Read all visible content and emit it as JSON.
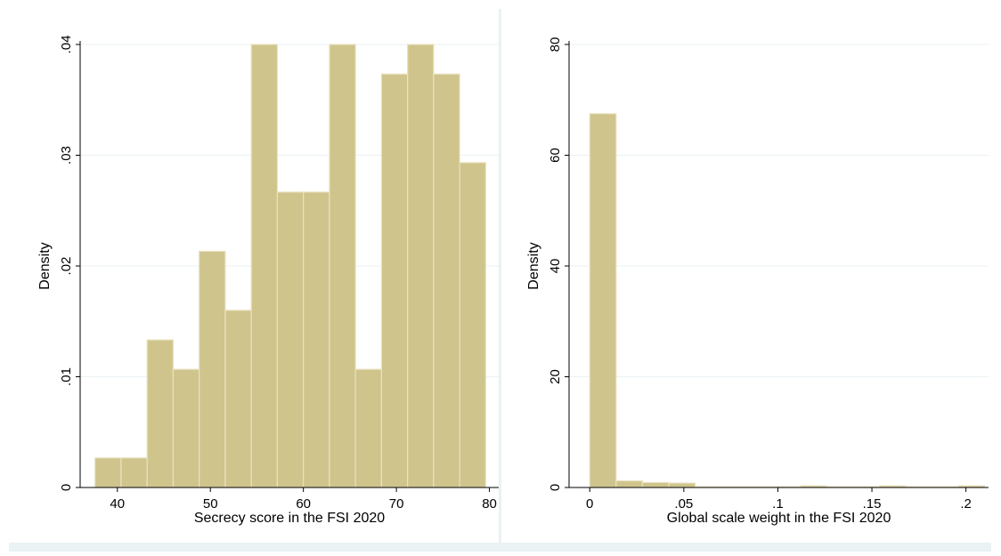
{
  "colors": {
    "bar_fill": "#cfc48c",
    "bar_stroke": "#e9e2c0",
    "grid": "#eaf2f3",
    "plot_bg": "#ffffff",
    "outer_bg": "#eaf2f3"
  },
  "chart_data": [
    {
      "type": "bar",
      "subtype": "histogram",
      "xlabel": "Secrecy score in the FSI 2020",
      "ylabel": "Density",
      "xlim": [
        36,
        81
      ],
      "ylim": [
        0,
        0.04
      ],
      "xticks": [
        40,
        50,
        60,
        70,
        80
      ],
      "xtick_labels": [
        "40",
        "50",
        "60",
        "70",
        "80"
      ],
      "yticks": [
        0,
        0.01,
        0.02,
        0.03,
        0.04
      ],
      "ytick_labels": [
        "0",
        ".01",
        ".02",
        ".03",
        ".04"
      ],
      "grid": true,
      "bins": [
        [
          37.6,
          40.4,
          0.00267
        ],
        [
          40.4,
          43.2,
          0.00267
        ],
        [
          43.2,
          46.0,
          0.01333
        ],
        [
          46.0,
          48.8,
          0.01067
        ],
        [
          48.8,
          51.6,
          0.02133
        ],
        [
          51.6,
          54.4,
          0.016
        ],
        [
          54.4,
          57.2,
          0.04
        ],
        [
          57.2,
          60.0,
          0.02667
        ],
        [
          60.0,
          62.8,
          0.02667
        ],
        [
          62.8,
          65.6,
          0.04
        ],
        [
          65.6,
          68.4,
          0.01067
        ],
        [
          68.4,
          71.2,
          0.03733
        ],
        [
          71.2,
          74.0,
          0.04
        ],
        [
          74.0,
          76.8,
          0.03733
        ],
        [
          76.8,
          79.6,
          0.02933
        ]
      ]
    },
    {
      "type": "bar",
      "subtype": "histogram",
      "xlabel": "Global scale weight in the FSI 2020",
      "ylabel": "Density",
      "xlim": [
        -0.011,
        0.212
      ],
      "ylim": [
        0,
        80
      ],
      "xticks": [
        0,
        0.05,
        0.1,
        0.15,
        0.2
      ],
      "xtick_labels": [
        "0",
        ".05",
        ".1",
        ".15",
        ".2"
      ],
      "yticks": [
        0,
        20,
        40,
        60,
        80
      ],
      "ytick_labels": [
        "0",
        "20",
        "40",
        "60",
        "80"
      ],
      "grid": true,
      "bins": [
        [
          0.0,
          0.014,
          67.5
        ],
        [
          0.014,
          0.028,
          1.2
        ],
        [
          0.028,
          0.042,
          0.9
        ],
        [
          0.042,
          0.056,
          0.8
        ],
        [
          0.056,
          0.07,
          0.15
        ],
        [
          0.07,
          0.084,
          0.15
        ],
        [
          0.084,
          0.098,
          0.15
        ],
        [
          0.098,
          0.112,
          0.15
        ],
        [
          0.112,
          0.126,
          0.3
        ],
        [
          0.126,
          0.14,
          0.15
        ],
        [
          0.14,
          0.154,
          0.15
        ],
        [
          0.154,
          0.168,
          0.3
        ],
        [
          0.168,
          0.182,
          0.15
        ],
        [
          0.182,
          0.196,
          0.15
        ],
        [
          0.196,
          0.21,
          0.3
        ]
      ]
    }
  ]
}
